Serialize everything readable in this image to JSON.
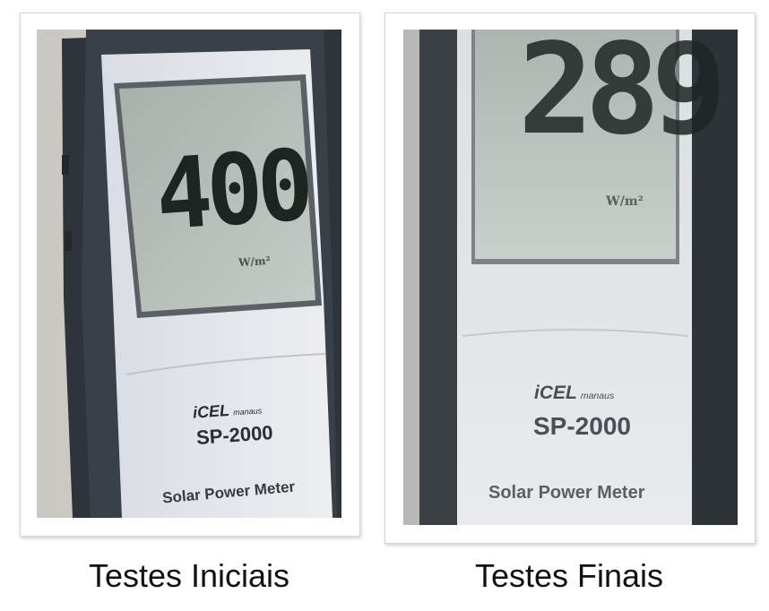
{
  "panels": [
    {
      "caption": "Testes Iniciais",
      "device": {
        "brand": "iCEL",
        "brand_suffix": "manaus",
        "model": "SP-2000",
        "subtitle": "Solar Power Meter"
      },
      "display": {
        "reading": "400",
        "unit": "W/m²"
      }
    },
    {
      "caption": "Testes Finais",
      "device": {
        "brand": "iCEL",
        "brand_suffix": "manaus",
        "model": "SP-2000",
        "subtitle": "Solar Power Meter"
      },
      "display": {
        "reading": "289",
        "unit": "W/m²"
      }
    }
  ]
}
